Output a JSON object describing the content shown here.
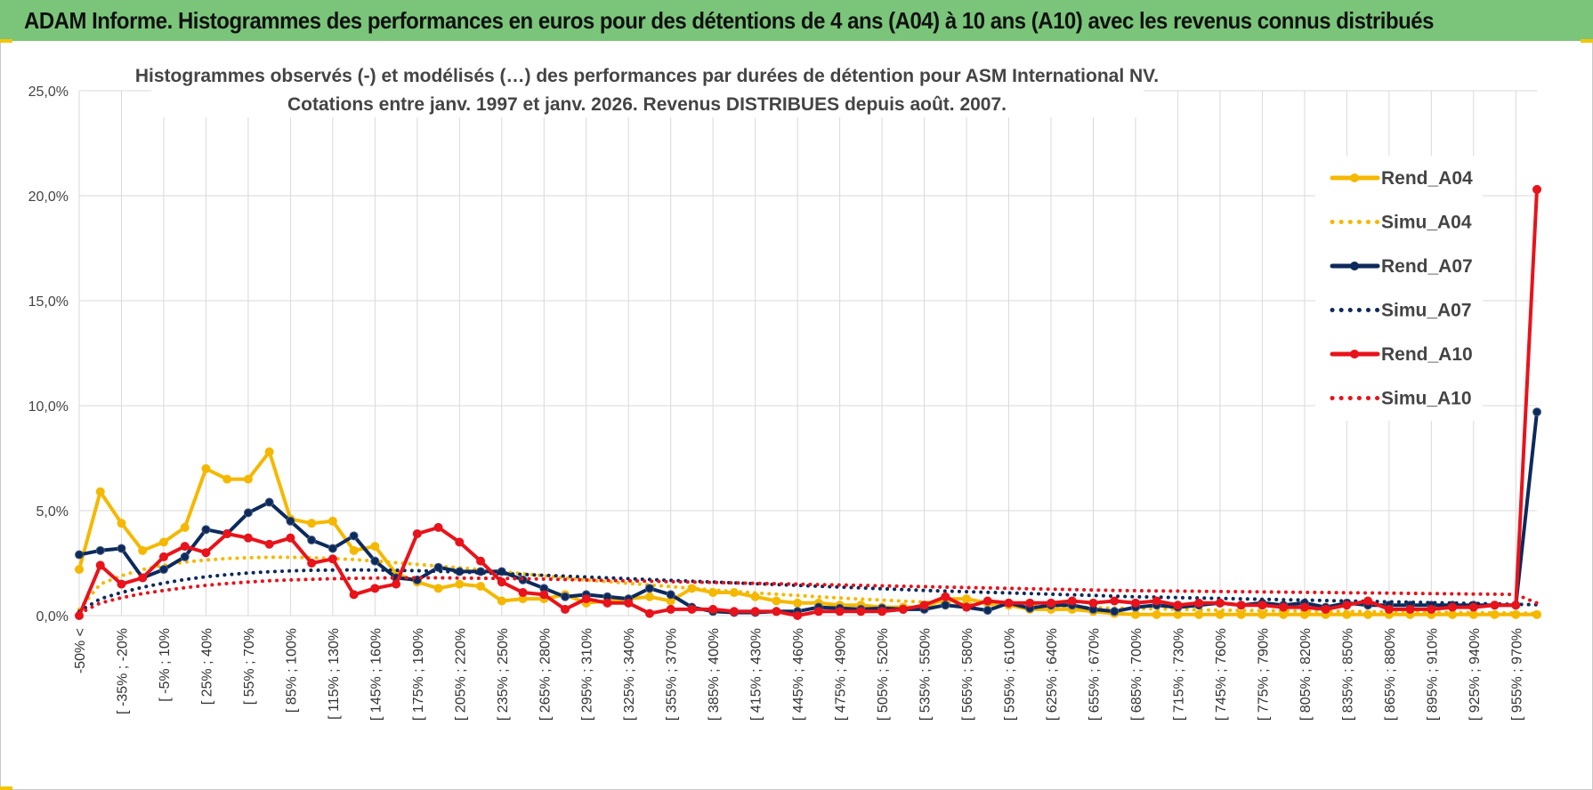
{
  "header": {
    "title": "ADAM Informe. Histogrammes des performances en euros pour des détentions de 4 ans (A04) à 10 ans (A10) avec les revenus connus distribués"
  },
  "chart_data": {
    "type": "line",
    "title_line1": "Histogrammes observés (-) et modélisés (…) des performances par durées de détention pour ASM  International NV.",
    "title_line2": "Cotations entre janv. 1997 et janv. 2026. Revenus DISTRIBUES depuis août. 2007.",
    "ylim": [
      0,
      25
    ],
    "yticks": [
      "0,0%",
      "5,0%",
      "10,0%",
      "15,0%",
      "20,0%",
      "25,0%"
    ],
    "ytick_values": [
      0,
      5,
      10,
      15,
      20,
      25
    ],
    "grid": true,
    "legend_position": "right",
    "x_labels": [
      "-50% <",
      "[ -35% ; -20%",
      "[ -5% ; 10%",
      "[ 25% ; 40%",
      "[ 55% ; 70%",
      "[ 85% ; 100%",
      "[ 115% ; 130%",
      "[ 145% ; 160%",
      "[ 175% ; 190%",
      "[ 205% ; 220%",
      "[ 235% ; 250%",
      "[ 265% ; 280%",
      "[ 295% ; 310%",
      "[ 325% ; 340%",
      "[ 355% ; 370%",
      "[ 385% ; 400%",
      "[ 415% ; 430%",
      "[ 445% ; 460%",
      "[ 475% ; 490%",
      "[ 505% ; 520%",
      "[ 535% ; 550%",
      "[ 565% ; 580%",
      "[ 595% ; 610%",
      "[ 625% ; 640%",
      "[ 655% ; 670%",
      "[ 685% ; 700%",
      "[ 715% ; 730%",
      "[ 745% ; 760%",
      "[ 775% ; 790%",
      "[ 805% ; 820%",
      "[ 835% ; 850%",
      "[ 865% ; 880%",
      "[ 895% ; 910%",
      "[ 925% ; 940%",
      "[ 955% ; 970%"
    ],
    "n_points": 70,
    "series": [
      {
        "name": "Rend_A04",
        "color": "#f5b800",
        "style": "solid",
        "markers": true,
        "values": [
          2.2,
          5.9,
          4.4,
          3.1,
          3.5,
          4.2,
          7.0,
          6.5,
          6.5,
          7.8,
          4.6,
          4.4,
          4.5,
          3.1,
          3.3,
          2.0,
          1.6,
          1.3,
          1.5,
          1.4,
          0.7,
          0.8,
          0.8,
          1.0,
          0.6,
          0.7,
          0.8,
          0.9,
          0.7,
          1.3,
          1.1,
          1.1,
          0.9,
          0.7,
          0.6,
          0.6,
          0.5,
          0.5,
          0.4,
          0.4,
          0.4,
          0.8,
          0.8,
          0.6,
          0.5,
          0.3,
          0.3,
          0.3,
          0.2,
          0.1,
          0.05,
          0.05,
          0.05,
          0.05,
          0.05,
          0.05,
          0.05,
          0.05,
          0.05,
          0.05,
          0.05,
          0.05,
          0.05,
          0.05,
          0.05,
          0.05,
          0.05,
          0.05,
          0.05,
          0.05
        ]
      },
      {
        "name": "Simu_A04",
        "color": "#f5b800",
        "style": "dotted",
        "markers": false,
        "values": [
          0.3,
          1.5,
          1.9,
          2.2,
          2.4,
          2.55,
          2.65,
          2.72,
          2.76,
          2.78,
          2.78,
          2.76,
          2.72,
          2.67,
          2.6,
          2.52,
          2.44,
          2.36,
          2.28,
          2.19,
          2.1,
          2.0,
          1.9,
          1.8,
          1.7,
          1.62,
          1.54,
          1.46,
          1.38,
          1.3,
          1.22,
          1.15,
          1.08,
          1.02,
          0.96,
          0.9,
          0.84,
          0.79,
          0.74,
          0.69,
          0.65,
          0.61,
          0.57,
          0.53,
          0.5,
          0.47,
          0.44,
          0.41,
          0.38,
          0.36,
          0.34,
          0.32,
          0.3,
          0.28,
          0.26,
          0.25,
          0.24,
          0.23,
          0.22,
          0.21,
          0.2,
          0.19,
          0.18,
          0.17,
          0.16,
          0.15,
          0.14,
          0.13,
          0.12,
          0.11
        ]
      },
      {
        "name": "Rend_A07",
        "color": "#0d2a5c",
        "style": "solid",
        "markers": true,
        "values": [
          2.9,
          3.1,
          3.2,
          1.8,
          2.2,
          2.8,
          4.1,
          3.9,
          4.9,
          5.4,
          4.5,
          3.6,
          3.2,
          3.8,
          2.6,
          1.8,
          1.7,
          2.3,
          2.1,
          2.1,
          2.1,
          1.7,
          1.3,
          0.9,
          1.0,
          0.9,
          0.8,
          1.3,
          1.0,
          0.4,
          0.2,
          0.15,
          0.15,
          0.2,
          0.2,
          0.4,
          0.35,
          0.3,
          0.35,
          0.3,
          0.3,
          0.5,
          0.4,
          0.25,
          0.6,
          0.35,
          0.5,
          0.5,
          0.3,
          0.2,
          0.4,
          0.5,
          0.4,
          0.5,
          0.6,
          0.5,
          0.6,
          0.5,
          0.6,
          0.4,
          0.6,
          0.5,
          0.5,
          0.5,
          0.5,
          0.5,
          0.5,
          0.5,
          0.5,
          9.7
        ]
      },
      {
        "name": "Simu_A07",
        "color": "#0d2a5c",
        "style": "dotted",
        "markers": false,
        "values": [
          0.2,
          0.8,
          1.1,
          1.35,
          1.55,
          1.72,
          1.85,
          1.95,
          2.03,
          2.09,
          2.13,
          2.16,
          2.17,
          2.18,
          2.17,
          2.16,
          2.14,
          2.11,
          2.08,
          2.04,
          2.0,
          1.96,
          1.92,
          1.88,
          1.84,
          1.8,
          1.76,
          1.72,
          1.68,
          1.64,
          1.6,
          1.56,
          1.52,
          1.48,
          1.44,
          1.4,
          1.36,
          1.32,
          1.28,
          1.24,
          1.2,
          1.17,
          1.14,
          1.11,
          1.08,
          1.05,
          1.02,
          0.99,
          0.96,
          0.93,
          0.9,
          0.88,
          0.86,
          0.84,
          0.82,
          0.8,
          0.78,
          0.76,
          0.74,
          0.72,
          0.7,
          0.68,
          0.66,
          0.64,
          0.62,
          0.6,
          0.58,
          0.56,
          0.54,
          0.52
        ]
      },
      {
        "name": "Rend_A10",
        "color": "#e8131b",
        "style": "solid",
        "markers": true,
        "values": [
          0.0,
          2.4,
          1.5,
          1.8,
          2.8,
          3.3,
          3.0,
          3.9,
          3.7,
          3.4,
          3.7,
          2.5,
          2.7,
          1.0,
          1.3,
          1.5,
          3.9,
          4.2,
          3.5,
          2.6,
          1.6,
          1.1,
          1.0,
          0.3,
          0.8,
          0.6,
          0.6,
          0.1,
          0.3,
          0.3,
          0.3,
          0.2,
          0.2,
          0.2,
          0.0,
          0.2,
          0.2,
          0.2,
          0.2,
          0.3,
          0.5,
          0.9,
          0.4,
          0.7,
          0.6,
          0.6,
          0.6,
          0.7,
          0.6,
          0.7,
          0.6,
          0.7,
          0.5,
          0.6,
          0.6,
          0.5,
          0.5,
          0.4,
          0.4,
          0.3,
          0.5,
          0.7,
          0.3,
          0.3,
          0.3,
          0.4,
          0.4,
          0.5,
          0.5,
          20.3
        ]
      },
      {
        "name": "Simu_A10",
        "color": "#e8131b",
        "style": "dotted",
        "markers": false,
        "values": [
          0.1,
          0.6,
          0.85,
          1.05,
          1.2,
          1.33,
          1.44,
          1.53,
          1.6,
          1.66,
          1.7,
          1.73,
          1.76,
          1.78,
          1.79,
          1.8,
          1.8,
          1.8,
          1.79,
          1.78,
          1.77,
          1.76,
          1.74,
          1.72,
          1.7,
          1.68,
          1.66,
          1.64,
          1.62,
          1.6,
          1.58,
          1.56,
          1.54,
          1.52,
          1.5,
          1.48,
          1.46,
          1.44,
          1.42,
          1.4,
          1.38,
          1.36,
          1.34,
          1.32,
          1.3,
          1.28,
          1.26,
          1.24,
          1.22,
          1.2,
          1.19,
          1.18,
          1.17,
          1.16,
          1.15,
          1.14,
          1.13,
          1.12,
          1.11,
          1.1,
          1.09,
          1.08,
          1.07,
          1.06,
          1.05,
          1.04,
          1.03,
          1.02,
          1.01,
          0.6
        ]
      }
    ]
  }
}
